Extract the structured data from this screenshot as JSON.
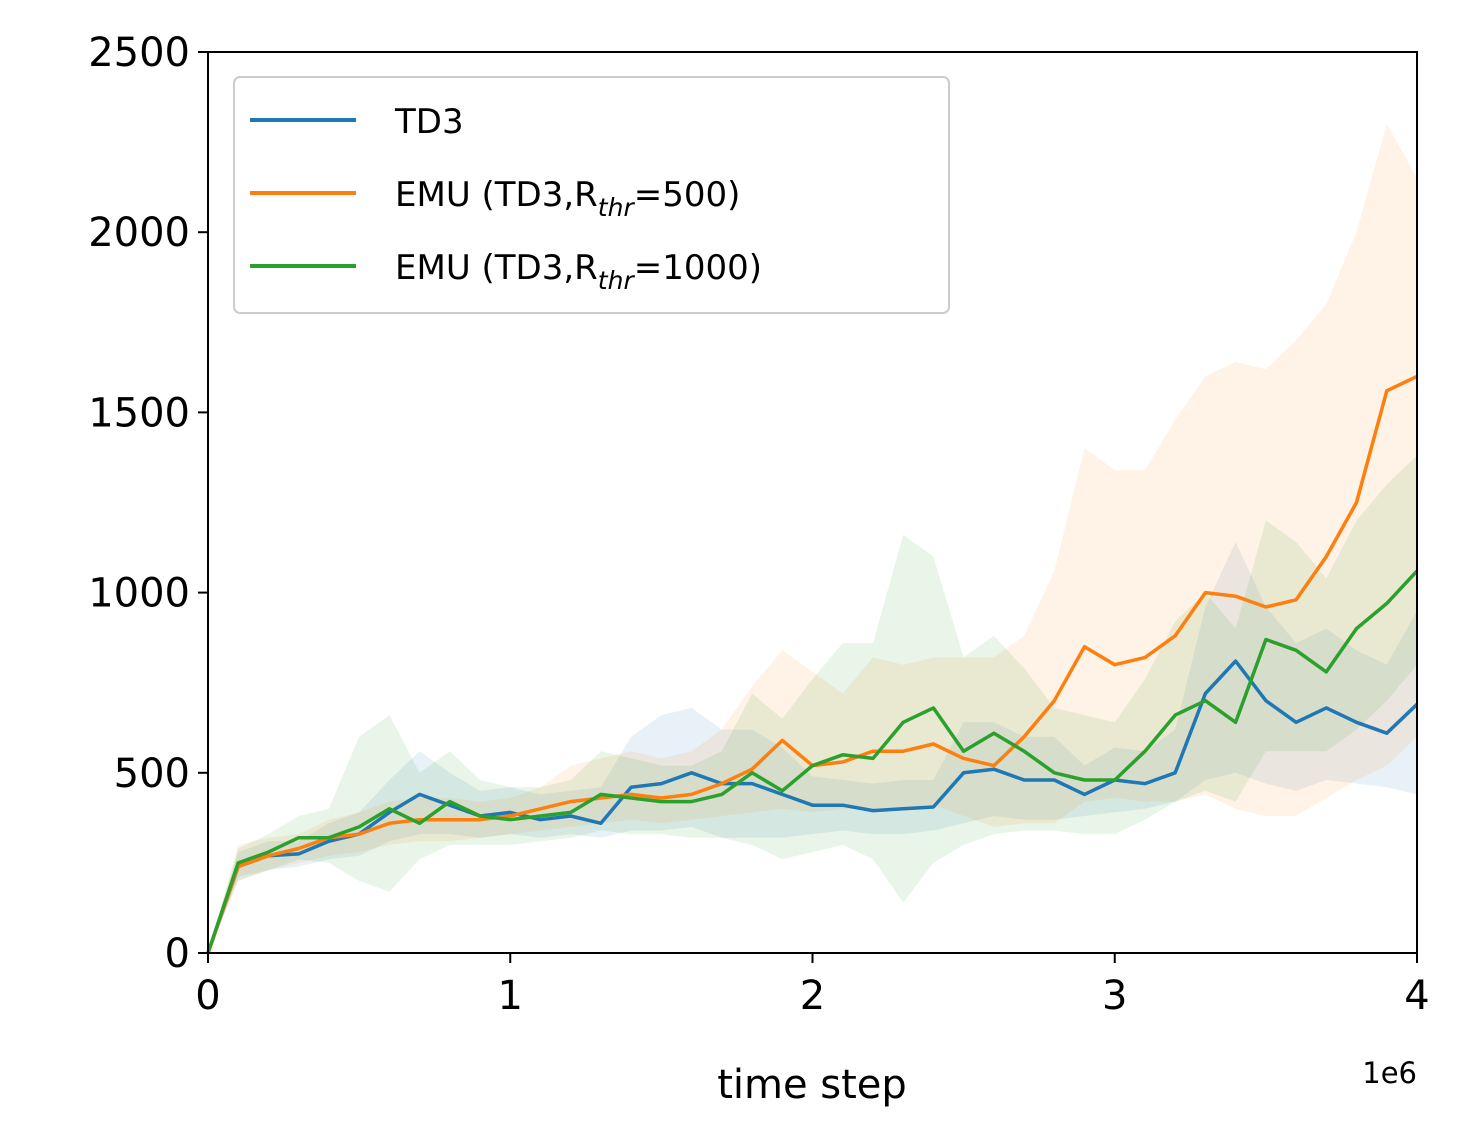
{
  "chart_data": {
    "type": "line",
    "title": "",
    "xlabel": "time step",
    "ylabel": "",
    "x_offset_label": "1e6",
    "xlim": [
      0,
      4
    ],
    "ylim": [
      0,
      2500
    ],
    "xticks": [
      0,
      1,
      2,
      3,
      4
    ],
    "xtick_labels": [
      "0",
      "1",
      "2",
      "3",
      "4"
    ],
    "yticks": [
      0,
      500,
      1000,
      1500,
      2000,
      2500
    ],
    "ytick_labels": [
      "0",
      "500",
      "1000",
      "1500",
      "2000",
      "2500"
    ],
    "grid": false,
    "legend_position": "top-left",
    "x": [
      0,
      0.1,
      0.2,
      0.3,
      0.4,
      0.5,
      0.6,
      0.7,
      0.8,
      0.9,
      1.0,
      1.1,
      1.2,
      1.3,
      1.4,
      1.5,
      1.6,
      1.7,
      1.8,
      1.9,
      2.0,
      2.1,
      2.2,
      2.3,
      2.4,
      2.5,
      2.6,
      2.7,
      2.8,
      2.9,
      3.0,
      3.1,
      3.2,
      3.3,
      3.4,
      3.5,
      3.6,
      3.7,
      3.8,
      3.9,
      4.0
    ],
    "series": [
      {
        "name": "TD3",
        "legend_base": "TD3",
        "legend_sub": "",
        "legend_tail": "",
        "color": "#1f77b4",
        "values": [
          0,
          240,
          270,
          275,
          310,
          330,
          390,
          440,
          410,
          380,
          390,
          370,
          380,
          360,
          460,
          470,
          500,
          470,
          470,
          440,
          410,
          410,
          395,
          400,
          405,
          500,
          510,
          480,
          480,
          440,
          480,
          470,
          500,
          720,
          810,
          700,
          640,
          680,
          640,
          610,
          690
        ],
        "lower": [
          0,
          200,
          230,
          240,
          260,
          270,
          310,
          330,
          330,
          320,
          330,
          320,
          330,
          320,
          340,
          340,
          350,
          320,
          320,
          320,
          330,
          340,
          330,
          330,
          340,
          360,
          380,
          370,
          370,
          380,
          390,
          400,
          420,
          480,
          500,
          470,
          450,
          480,
          470,
          460,
          440
        ],
        "upper": [
          0,
          280,
          310,
          310,
          360,
          390,
          480,
          560,
          500,
          450,
          460,
          440,
          450,
          460,
          600,
          660,
          680,
          620,
          620,
          570,
          490,
          480,
          470,
          480,
          480,
          640,
          640,
          600,
          600,
          520,
          570,
          560,
          620,
          960,
          1140,
          960,
          860,
          900,
          840,
          800,
          950
        ]
      },
      {
        "name": "EMU (TD3,R_thr=500)",
        "legend_base": "EMU (TD3,R",
        "legend_sub": "thr",
        "legend_tail": "=500)",
        "color": "#ff7f0e",
        "values": [
          0,
          240,
          270,
          290,
          320,
          330,
          360,
          370,
          370,
          370,
          380,
          400,
          420,
          430,
          440,
          430,
          440,
          470,
          510,
          590,
          520,
          530,
          560,
          560,
          580,
          540,
          520,
          600,
          700,
          850,
          800,
          820,
          880,
          1000,
          990,
          960,
          980,
          1100,
          1250,
          1560,
          1600
        ],
        "lower": [
          0,
          200,
          230,
          250,
          270,
          280,
          300,
          310,
          310,
          320,
          330,
          340,
          350,
          360,
          370,
          360,
          370,
          380,
          390,
          400,
          390,
          400,
          400,
          400,
          410,
          380,
          350,
          360,
          360,
          420,
          430,
          420,
          420,
          440,
          400,
          380,
          380,
          430,
          480,
          520,
          600
        ],
        "upper": [
          0,
          300,
          320,
          330,
          370,
          390,
          420,
          430,
          430,
          420,
          430,
          460,
          520,
          540,
          560,
          540,
          560,
          620,
          740,
          840,
          780,
          720,
          820,
          800,
          820,
          820,
          820,
          880,
          1060,
          1400,
          1340,
          1340,
          1480,
          1600,
          1640,
          1620,
          1700,
          1800,
          2000,
          2300,
          2150
        ]
      },
      {
        "name": "EMU (TD3,R_thr=1000)",
        "legend_base": "EMU (TD3,R",
        "legend_sub": "thr",
        "legend_tail": "=1000)",
        "color": "#2ca02c",
        "values": [
          0,
          250,
          280,
          320,
          320,
          350,
          400,
          360,
          420,
          380,
          370,
          380,
          390,
          440,
          430,
          420,
          420,
          440,
          500,
          450,
          520,
          550,
          540,
          640,
          680,
          560,
          610,
          560,
          500,
          480,
          480,
          560,
          660,
          700,
          640,
          870,
          840,
          780,
          900,
          970,
          1060
        ],
        "lower": [
          0,
          210,
          230,
          260,
          250,
          200,
          170,
          260,
          300,
          300,
          300,
          310,
          320,
          340,
          330,
          330,
          320,
          320,
          300,
          260,
          280,
          300,
          260,
          140,
          250,
          300,
          330,
          340,
          340,
          330,
          330,
          370,
          420,
          450,
          420,
          560,
          560,
          560,
          620,
          700,
          800
        ],
        "upper": [
          0,
          290,
          330,
          380,
          400,
          600,
          660,
          500,
          560,
          480,
          460,
          460,
          480,
          560,
          540,
          520,
          520,
          560,
          720,
          650,
          760,
          860,
          860,
          1160,
          1100,
          820,
          880,
          790,
          680,
          660,
          640,
          760,
          920,
          1000,
          900,
          1200,
          1140,
          1040,
          1200,
          1300,
          1380
        ]
      }
    ]
  }
}
